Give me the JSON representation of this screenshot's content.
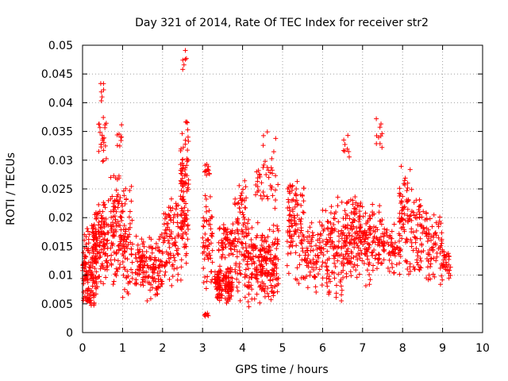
{
  "chart_data": {
    "type": "scatter",
    "title": "Day 321 of 2014, Rate Of TEC Index for receiver str2",
    "xlabel": "GPS time / hours",
    "ylabel": "ROTI / TECUs",
    "xlim": [
      0,
      10
    ],
    "ylim": [
      0,
      0.05
    ],
    "x_ticks": [
      0,
      1,
      2,
      3,
      4,
      5,
      6,
      7,
      8,
      9,
      10
    ],
    "y_ticks": [
      0,
      0.005,
      0.01,
      0.015,
      0.02,
      0.025,
      0.03,
      0.035,
      0.04,
      0.045,
      0.05
    ],
    "x_tick_labels": [
      "0",
      "1",
      "2",
      "3",
      "4",
      "5",
      "6",
      "7",
      "8",
      "9",
      "10"
    ],
    "y_tick_labels": [
      "0",
      "0.005",
      "0.01",
      "0.015",
      "0.02",
      "0.025",
      "0.03",
      "0.035",
      "0.04",
      "0.045",
      "0.05"
    ],
    "grid": true,
    "marker": "plus",
    "series": [
      {
        "name": "ROTI",
        "color": "#ff0000",
        "clusters": [
          {
            "x": [
              0.0,
              0.35
            ],
            "y": [
              0.005,
              0.02
            ],
            "n": 110
          },
          {
            "x": [
              0.05,
              0.3
            ],
            "y": [
              0.004,
              0.008
            ],
            "n": 25
          },
          {
            "x": [
              0.25,
              0.65
            ],
            "y": [
              0.007,
              0.025
            ],
            "n": 140
          },
          {
            "x": [
              0.4,
              0.6
            ],
            "y": [
              0.028,
              0.038
            ],
            "n": 22
          },
          {
            "x": [
              0.45,
              0.6
            ],
            "y": [
              0.04,
              0.047
            ],
            "n": 6
          },
          {
            "x": [
              0.7,
              1.0
            ],
            "y": [
              0.007,
              0.03
            ],
            "n": 100
          },
          {
            "x": [
              0.85,
              1.0
            ],
            "y": [
              0.03,
              0.037
            ],
            "n": 8
          },
          {
            "x": [
              1.0,
              1.25
            ],
            "y": [
              0.005,
              0.028
            ],
            "n": 70
          },
          {
            "x": [
              1.3,
              1.6
            ],
            "y": [
              0.007,
              0.017
            ],
            "n": 70
          },
          {
            "x": [
              1.6,
              2.0
            ],
            "y": [
              0.005,
              0.018
            ],
            "n": 90
          },
          {
            "x": [
              2.0,
              2.4
            ],
            "y": [
              0.007,
              0.025
            ],
            "n": 90
          },
          {
            "x": [
              2.45,
              2.65
            ],
            "y": [
              0.008,
              0.038
            ],
            "n": 110
          },
          {
            "x": [
              2.5,
              2.6
            ],
            "y": [
              0.044,
              0.05
            ],
            "n": 6
          },
          {
            "x": [
              3.0,
              3.25
            ],
            "y": [
              0.007,
              0.025
            ],
            "n": 60
          },
          {
            "x": [
              3.05,
              3.2
            ],
            "y": [
              0.027,
              0.03
            ],
            "n": 12
          },
          {
            "x": [
              3.0,
              3.15
            ],
            "y": [
              0.0025,
              0.004
            ],
            "n": 8
          },
          {
            "x": [
              3.3,
              3.75
            ],
            "y": [
              0.005,
              0.012
            ],
            "n": 130
          },
          {
            "x": [
              3.4,
              3.8
            ],
            "y": [
              0.012,
              0.02
            ],
            "n": 60
          },
          {
            "x": [
              3.8,
              4.1
            ],
            "y": [
              0.005,
              0.028
            ],
            "n": 90
          },
          {
            "x": [
              4.1,
              4.45
            ],
            "y": [
              0.004,
              0.02
            ],
            "n": 90
          },
          {
            "x": [
              4.3,
              4.5
            ],
            "y": [
              0.02,
              0.03
            ],
            "n": 15
          },
          {
            "x": [
              4.45,
              4.9
            ],
            "y": [
              0.005,
              0.02
            ],
            "n": 140
          },
          {
            "x": [
              4.5,
              4.9
            ],
            "y": [
              0.02,
              0.036
            ],
            "n": 30
          },
          {
            "x": [
              5.1,
              5.55
            ],
            "y": [
              0.008,
              0.029
            ],
            "n": 110
          },
          {
            "x": [
              5.55,
              6.0
            ],
            "y": [
              0.006,
              0.02
            ],
            "n": 80
          },
          {
            "x": [
              6.0,
              6.5
            ],
            "y": [
              0.005,
              0.024
            ],
            "n": 110
          },
          {
            "x": [
              6.5,
              6.7
            ],
            "y": [
              0.029,
              0.036
            ],
            "n": 8
          },
          {
            "x": [
              6.5,
              7.1
            ],
            "y": [
              0.008,
              0.024
            ],
            "n": 170
          },
          {
            "x": [
              7.1,
              7.5
            ],
            "y": [
              0.007,
              0.024
            ],
            "n": 80
          },
          {
            "x": [
              7.3,
              7.5
            ],
            "y": [
              0.032,
              0.038
            ],
            "n": 10
          },
          {
            "x": [
              7.5,
              7.95
            ],
            "y": [
              0.009,
              0.02
            ],
            "n": 60
          },
          {
            "x": [
              7.9,
              8.2
            ],
            "y": [
              0.01,
              0.031
            ],
            "n": 70
          },
          {
            "x": [
              8.2,
              8.6
            ],
            "y": [
              0.009,
              0.025
            ],
            "n": 70
          },
          {
            "x": [
              8.6,
              9.0
            ],
            "y": [
              0.008,
              0.021
            ],
            "n": 70
          },
          {
            "x": [
              9.0,
              9.2
            ],
            "y": [
              0.009,
              0.015
            ],
            "n": 30
          }
        ]
      }
    ]
  }
}
